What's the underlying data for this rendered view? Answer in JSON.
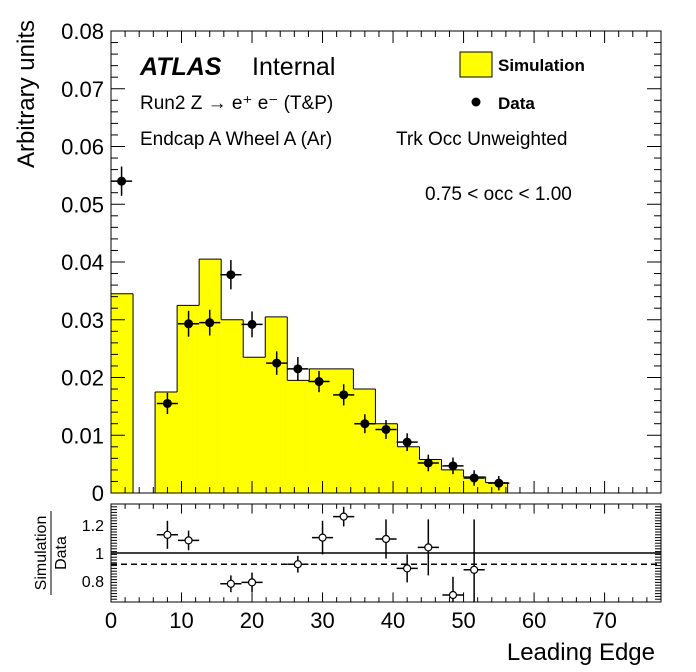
{
  "chart_data": [
    {
      "type": "bar",
      "panel": "main",
      "ylabel": "Arbitrary units",
      "ylim": [
        0,
        0.08
      ],
      "xlim": [
        0,
        78
      ],
      "yticks": [
        "0",
        "0.01",
        "0.02",
        "0.03",
        "0.04",
        "0.05",
        "0.06",
        "0.07",
        "0.08"
      ],
      "ytick_values": [
        0,
        0.01,
        0.02,
        0.03,
        0.04,
        0.05,
        0.06,
        0.07,
        0.08
      ],
      "atlas_label": "ATLAS",
      "atlas_sublabel": "Internal",
      "annotations": [
        "Run2 Z → e⁺ e⁻ (T&P)",
        "Endcap A Wheel A (Ar)",
        "Trk Occ Unweighted",
        "0.75 < occ < 1.00"
      ],
      "legend_placement": "top-right",
      "series": [
        {
          "name": "Simulation",
          "kind": "histogram",
          "color": "#ffff00",
          "bin_edges": [
            0,
            3.125,
            6.25,
            9.375,
            12.5,
            15.625,
            18.75,
            21.875,
            25,
            28.125,
            31.25,
            34.375,
            37.5,
            40.625,
            43.75,
            46.875,
            50,
            53.125,
            56.25,
            78
          ],
          "values": [
            0.0345,
            0,
            0.0175,
            0.0325,
            0.0405,
            0.03,
            0.0235,
            0.0305,
            0.0195,
            0.0215,
            0.0215,
            0.018,
            0.012,
            0.008,
            0.0058,
            0.004,
            0.0028,
            0.0018,
            0
          ]
        },
        {
          "name": "Data",
          "kind": "points",
          "color": "#000000",
          "x": [
            1.5,
            8,
            11,
            14,
            17,
            20,
            23.5,
            26.5,
            29.5,
            33,
            36,
            39,
            42,
            45,
            48.5,
            51.5,
            55
          ],
          "y": [
            0.054,
            0.0155,
            0.0293,
            0.0295,
            0.0378,
            0.0292,
            0.0225,
            0.0215,
            0.0193,
            0.017,
            0.012,
            0.011,
            0.0088,
            0.0052,
            0.0047,
            0.0026,
            0.0017
          ],
          "yerr": [
            0.0015,
            0.0008,
            0.0012,
            0.0012,
            0.0015,
            0.0012,
            0.001,
            0.001,
            0.0008,
            0.0008,
            0.0006,
            0.0006,
            0.0005,
            0.0004,
            0.0004,
            0.0003,
            0.0002
          ]
        }
      ]
    },
    {
      "type": "scatter",
      "panel": "ratio",
      "ylabel_top": "Simulation",
      "ylabel_bottom": "Data",
      "xlabel": "Leading Edge",
      "xlim": [
        0,
        78
      ],
      "ylim": [
        0.65,
        1.35
      ],
      "yticks": [
        "0.8",
        "1",
        "1.2"
      ],
      "ytick_values": [
        0.8,
        1,
        1.2
      ],
      "xticks": [
        "0",
        "10",
        "20",
        "30",
        "40",
        "50",
        "60",
        "70"
      ],
      "xtick_values": [
        0,
        10,
        20,
        30,
        40,
        50,
        60,
        70
      ],
      "reference_line": 1.0,
      "dashed_line": 0.92,
      "series": [
        {
          "name": "",
          "x": [
            8,
            11,
            17,
            20,
            26.5,
            30,
            33,
            39,
            42,
            45,
            48.5,
            51.5
          ],
          "y": [
            1.13,
            1.09,
            0.78,
            0.79,
            0.92,
            1.11,
            1.26,
            1.1,
            0.89,
            1.04,
            0.7,
            0.88
          ],
          "yerr": [
            0.1,
            0.07,
            0.06,
            0.07,
            0.06,
            0.12,
            0.07,
            0.14,
            0.1,
            0.2,
            0.13,
            0.36
          ],
          "xerr": [
            1.5,
            1.5,
            1.5,
            1.5,
            1.5,
            1.5,
            1.5,
            1.5,
            1.5,
            1.5,
            1.5,
            1.5
          ]
        }
      ]
    }
  ]
}
